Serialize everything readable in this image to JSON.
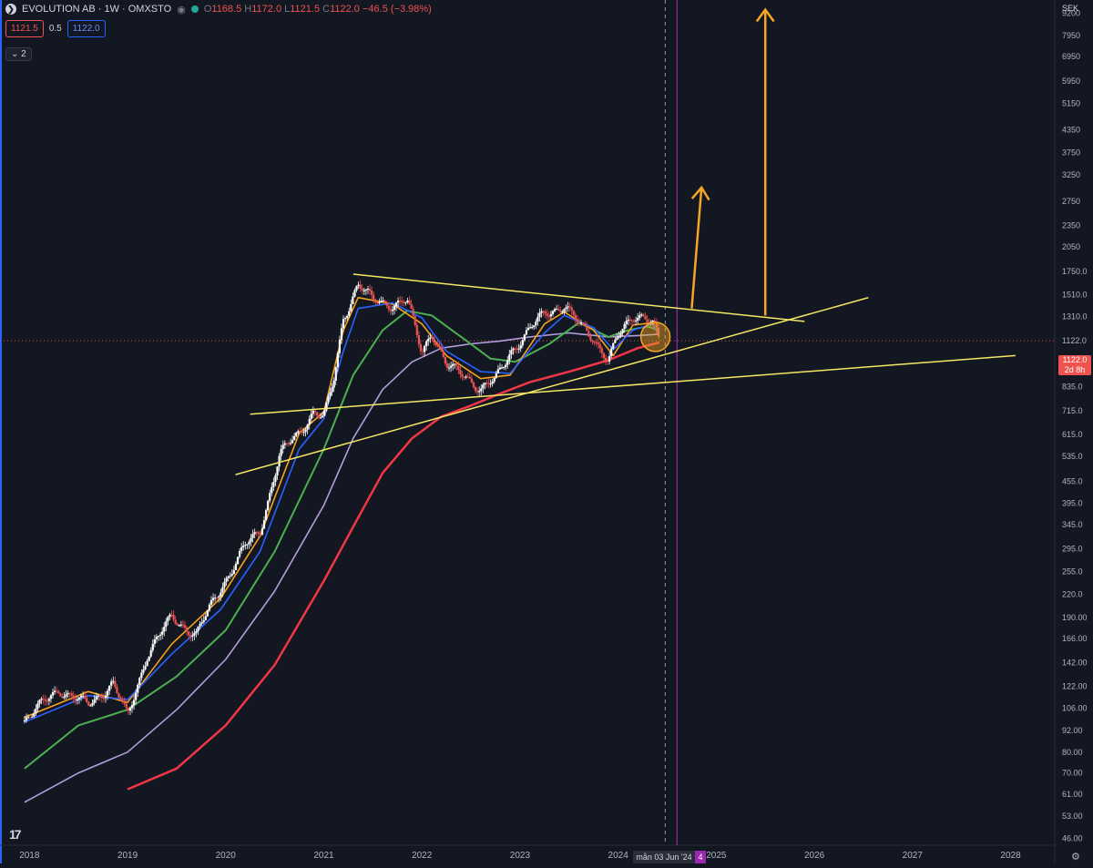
{
  "header": {
    "symbol_title": "EVOLUTION AB · 1W · OMXSTO",
    "ohlc": {
      "o_label": "O",
      "o": "1168.5",
      "h_label": "H",
      "h": "1172.0",
      "l_label": "L",
      "l": "1121.5",
      "c_label": "C",
      "c": "1122.0",
      "change": "−46.5 (−3.98%)"
    },
    "indicator_values": [
      "1121.5",
      "0.5",
      "1122.0"
    ],
    "collapse_label": "2",
    "currency": "SEK"
  },
  "price_axis": {
    "current_price": "1122.0",
    "countdown": "2d 8h"
  },
  "time_axis": {
    "crosshair_date": "mån 03 Jun '24",
    "crosshair_extra": "4"
  },
  "colors": {
    "background": "#131722",
    "ma_blue": "#2962ff",
    "ma_orange": "#f7a21b",
    "ma_green": "#4caf50",
    "ma_purple": "#b39ddb",
    "ma_red": "#f23645",
    "trendline": "#f5e663",
    "arrow": "#f5a623",
    "crosshair": "#9c27b0",
    "candle_up": "#ffffff",
    "candle_down": "#ef5350"
  },
  "icons": [
    "symbol-icon",
    "eye-icon",
    "live-dot-icon",
    "tradingview-logo",
    "gear-icon"
  ],
  "chart_data": {
    "type": "line",
    "yscale": "log",
    "ylim": [
      44,
      10000
    ],
    "y_ticks": [
      "10000",
      "9200",
      "7950",
      "6950",
      "5950",
      "5150",
      "4350",
      "3750",
      "3250",
      "2750",
      "2350",
      "2050",
      "1750.0",
      "1510.0",
      "1310.0",
      "1122.0",
      "960.0",
      "835.0",
      "715.0",
      "615.0",
      "535.0",
      "455.0",
      "395.0",
      "345.0",
      "295.0",
      "255.0",
      "220.0",
      "190.00",
      "166.00",
      "142.00",
      "122.00",
      "106.00",
      "92.00",
      "80.00",
      "70.00",
      "61.00",
      "53.00",
      "46.00"
    ],
    "x_ticks": [
      "2018",
      "2019",
      "2020",
      "2021",
      "2022",
      "2023",
      "2024",
      "2025",
      "2026",
      "2027",
      "2028"
    ],
    "price_series": {
      "name": "",
      "x": [
        2017.95,
        2018.3,
        2018.6,
        2018.85,
        2019.0,
        2019.2,
        2019.45,
        2019.7,
        2019.95,
        2020.2,
        2020.35,
        2020.55,
        2020.75,
        2020.9,
        2021.0,
        2021.1,
        2021.2,
        2021.35,
        2021.5,
        2021.7,
        2021.85,
        2022.0,
        2022.1,
        2022.25,
        2022.45,
        2022.6,
        2022.75,
        2022.9,
        2023.05,
        2023.25,
        2023.45,
        2023.6,
        2023.75,
        2023.9,
        2024.0,
        2024.15,
        2024.25,
        2024.35,
        2024.42
      ],
      "y": [
        98,
        120,
        108,
        125,
        100,
        150,
        190,
        170,
        230,
        300,
        330,
        540,
        620,
        720,
        680,
        860,
        1300,
        1620,
        1450,
        1420,
        1450,
        1040,
        1200,
        950,
        900,
        820,
        870,
        1050,
        1150,
        1350,
        1400,
        1250,
        1150,
        980,
        1150,
        1330,
        1320,
        1250,
        1122
      ]
    },
    "series": [
      {
        "name": "",
        "color": "#f7a21b",
        "x": [
          2017.95,
          2018.6,
          2019.0,
          2019.45,
          2019.95,
          2020.35,
          2020.75,
          2021.0,
          2021.2,
          2021.35,
          2021.7,
          2022.0,
          2022.25,
          2022.6,
          2022.9,
          2023.25,
          2023.45,
          2023.75,
          2023.95,
          2024.15,
          2024.35,
          2024.42
        ],
        "y": [
          100,
          118,
          110,
          160,
          215,
          320,
          620,
          710,
          1200,
          1480,
          1420,
          1250,
          1020,
          880,
          900,
          1250,
          1350,
          1200,
          1020,
          1240,
          1260,
          1150
        ]
      },
      {
        "name": "",
        "color": "#2962ff",
        "x": [
          2017.95,
          2018.6,
          2019.0,
          2019.45,
          2019.95,
          2020.35,
          2020.75,
          2021.0,
          2021.2,
          2021.35,
          2021.7,
          2022.0,
          2022.25,
          2022.6,
          2022.9,
          2023.25,
          2023.45,
          2023.75,
          2023.95,
          2024.15,
          2024.35,
          2024.42
        ],
        "y": [
          97,
          115,
          112,
          150,
          200,
          290,
          560,
          680,
          1050,
          1380,
          1430,
          1300,
          1050,
          920,
          910,
          1180,
          1320,
          1220,
          1060,
          1200,
          1250,
          1160
        ]
      },
      {
        "name": "",
        "color": "#4caf50",
        "x": [
          2017.95,
          2018.5,
          2019.0,
          2019.5,
          2020.0,
          2020.5,
          2021.0,
          2021.3,
          2021.6,
          2021.85,
          2022.1,
          2022.4,
          2022.7,
          2022.95,
          2023.3,
          2023.6,
          2023.9,
          2024.1,
          2024.3,
          2024.42
        ],
        "y": [
          72,
          95,
          105,
          130,
          175,
          290,
          560,
          900,
          1200,
          1360,
          1320,
          1150,
          1000,
          980,
          1100,
          1260,
          1150,
          1200,
          1230,
          1200
        ]
      },
      {
        "name": "",
        "color": "#b39ddb",
        "x": [
          2017.95,
          2018.5,
          2019.0,
          2019.5,
          2020.0,
          2020.5,
          2021.0,
          2021.3,
          2021.6,
          2021.9,
          2022.2,
          2022.5,
          2022.8,
          2023.1,
          2023.5,
          2023.9,
          2024.2,
          2024.42
        ],
        "y": [
          58,
          70,
          80,
          105,
          145,
          225,
          390,
          600,
          820,
          980,
          1070,
          1100,
          1120,
          1150,
          1180,
          1150,
          1160,
          1170
        ]
      },
      {
        "name": "",
        "color": "#f23645",
        "x": [
          2019.0,
          2019.5,
          2020.0,
          2020.5,
          2021.0,
          2021.3,
          2021.6,
          2021.9,
          2022.2,
          2022.5,
          2022.8,
          2023.1,
          2023.5,
          2023.9,
          2024.2,
          2024.42
        ],
        "y": [
          63,
          72,
          95,
          140,
          240,
          340,
          480,
          600,
          690,
          740,
          800,
          860,
          920,
          990,
          1070,
          1110
        ]
      }
    ],
    "annotations": [
      {
        "kind": "trendline",
        "x": [
          2021.3,
          2025.9
        ],
        "y": [
          1720,
          1270
        ]
      },
      {
        "kind": "trendline",
        "x": [
          2020.1,
          2026.55
        ],
        "y": [
          475,
          1480
        ]
      },
      {
        "kind": "trendline",
        "x": [
          2020.25,
          2028.05
        ],
        "y": [
          700,
          1020
        ]
      },
      {
        "kind": "arrow",
        "x": [
          2024.75,
          2024.85
        ],
        "y": [
          1380,
          3000
        ]
      },
      {
        "kind": "arrow",
        "x": [
          2025.5,
          2025.5
        ],
        "y": [
          1320,
          9400
        ]
      },
      {
        "kind": "circle",
        "x": 2024.38,
        "y": 1150
      }
    ],
    "crosshair_x": 2024.48,
    "purple_vline_x": 2024.6,
    "current_price_line": 1122.0
  }
}
